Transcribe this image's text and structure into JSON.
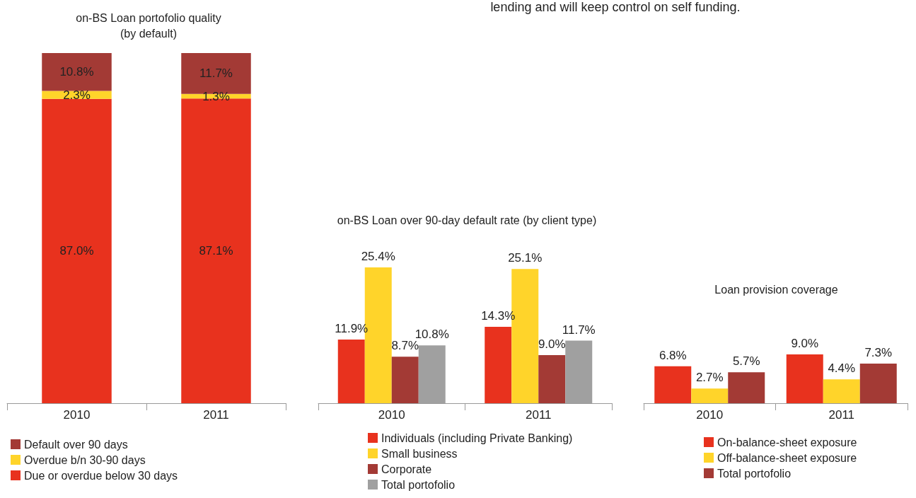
{
  "chart_data": [
    {
      "type": "bar",
      "title": "on-BS Loan portofolio quality",
      "subtitle": "(by default)",
      "categories": [
        "2010",
        "2011"
      ],
      "stacked": true,
      "legend": "bottom",
      "tick_labels": "x",
      "series": [
        {
          "name": "Due or overdue below 30 days",
          "color": "#e8321e",
          "values": [
            87.0,
            87.1
          ],
          "value_labels": [
            "87.0%",
            "87.1%"
          ]
        },
        {
          "name": "Overdue b/n 30-90 days",
          "color": "#ffd42a",
          "values": [
            2.3,
            1.3
          ],
          "value_labels": [
            "2.3%",
            "1.3%"
          ]
        },
        {
          "name": "Default over 90 days",
          "color": "#a33a35",
          "values": [
            10.8,
            11.7
          ],
          "value_labels": [
            "10.8%",
            "11.7%"
          ]
        }
      ]
    },
    {
      "type": "bar",
      "title": "on-BS Loan over 90-day default rate (by client type)",
      "annotations": [
        "lending and will keep control on self funding."
      ],
      "categories": [
        "2010",
        "2011"
      ],
      "legend": "bottom",
      "tick_labels": "x",
      "series": [
        {
          "name": "Individuals (including Private Banking)",
          "color": "#e8321e",
          "values": [
            11.9,
            14.3
          ],
          "value_labels": [
            "11.9%",
            "14.3%"
          ]
        },
        {
          "name": "Small business",
          "color": "#ffd42a",
          "values": [
            25.4,
            25.1
          ],
          "value_labels": [
            "25.4%",
            "25.1%"
          ]
        },
        {
          "name": "Corporate",
          "color": "#a33a35",
          "values": [
            8.7,
            9.0
          ],
          "value_labels": [
            "8.7%",
            "9.0%"
          ]
        },
        {
          "name": "Total portofolio",
          "color": "#a0a0a0",
          "values": [
            10.8,
            11.7
          ],
          "value_labels": [
            "10.8%",
            "11.7%"
          ]
        }
      ]
    },
    {
      "type": "bar",
      "title": "Loan provision coverage",
      "categories": [
        "2010",
        "2011"
      ],
      "legend": "bottom",
      "tick_labels": "x",
      "series": [
        {
          "name": "On-balance-sheet exposure",
          "color": "#e8321e",
          "values": [
            6.8,
            9.0
          ],
          "value_labels": [
            "6.8%",
            "9.0%"
          ]
        },
        {
          "name": "Off-balance-sheet exposure",
          "color": "#ffd42a",
          "values": [
            2.7,
            4.4
          ],
          "value_labels": [
            "2.7%",
            "4.4%"
          ]
        },
        {
          "name": "Total portofolio",
          "color": "#a33a35",
          "values": [
            5.7,
            7.3
          ],
          "value_labels": [
            "5.7%",
            "7.3%"
          ]
        }
      ]
    }
  ]
}
